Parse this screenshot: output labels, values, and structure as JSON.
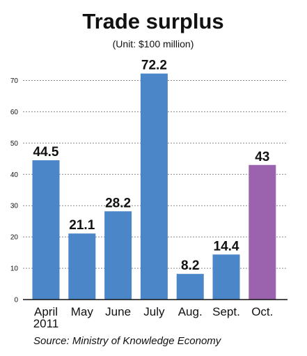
{
  "chart_data": {
    "type": "bar",
    "title": "Trade surplus",
    "subtitle": "(Unit: $100 million)",
    "categories": [
      "April",
      "May",
      "June",
      "July",
      "Aug.",
      "Sept.",
      "Oct."
    ],
    "category_sublabels": [
      "2011",
      "",
      "",
      "",
      "",
      "",
      ""
    ],
    "values": [
      44.5,
      21.1,
      28.2,
      72.2,
      8.2,
      14.4,
      43
    ],
    "value_labels": [
      "44.5",
      "21.1",
      "28.2",
      "72.2",
      "8.2",
      "14.4",
      "43"
    ],
    "yticks": [
      0,
      10,
      20,
      30,
      40,
      50,
      60,
      70
    ],
    "ylim": [
      0,
      75
    ],
    "grid": true,
    "legend": "none",
    "bar_colors": [
      "#4a86c8",
      "#4a86c8",
      "#4a86c8",
      "#4a86c8",
      "#4a86c8",
      "#4a86c8",
      "#9b63ad"
    ],
    "grid_color": "#8a8a8a",
    "source": "Source: Ministry of Knowledge Economy"
  }
}
